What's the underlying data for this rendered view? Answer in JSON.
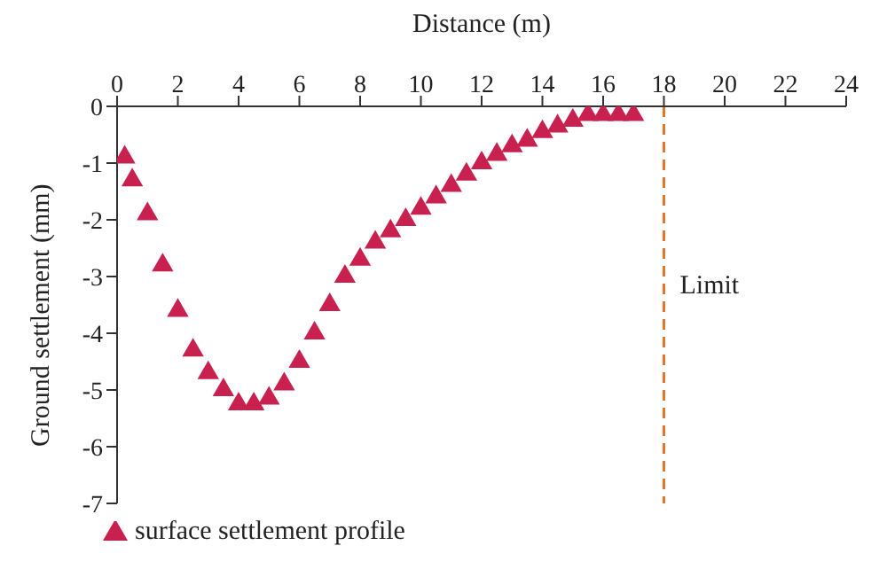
{
  "chart_data": {
    "type": "scatter",
    "xlabel": "Distance (m)",
    "ylabel": "Ground settlement (mm)",
    "x": [
      0.25,
      0.5,
      1,
      1.5,
      2,
      2.5,
      3,
      3.5,
      4,
      4.5,
      5,
      5.5,
      6,
      6.5,
      7,
      7.5,
      8,
      8.5,
      9,
      9.5,
      10,
      10.5,
      11,
      11.5,
      12,
      12.5,
      13,
      13.5,
      14,
      14.5,
      15,
      15.5,
      16,
      16.5,
      17
    ],
    "series": [
      {
        "name": "surface settlement profile",
        "color": "#c8214f",
        "values": [
          -0.9,
          -1.3,
          -1.9,
          -2.8,
          -3.6,
          -4.3,
          -4.7,
          -5.0,
          -5.25,
          -5.25,
          -5.15,
          -4.9,
          -4.5,
          -4.0,
          -3.5,
          -3.0,
          -2.7,
          -2.4,
          -2.2,
          -2.0,
          -1.8,
          -1.6,
          -1.4,
          -1.2,
          -1.0,
          -0.85,
          -0.7,
          -0.6,
          -0.45,
          -0.35,
          -0.25,
          -0.15,
          -0.15,
          -0.15,
          -0.15
        ]
      }
    ],
    "xlim": [
      0,
      24
    ],
    "xticks": [
      0,
      2,
      4,
      6,
      8,
      10,
      12,
      14,
      16,
      18,
      20,
      22,
      24
    ],
    "ylim": [
      -7,
      0
    ],
    "yticks": [
      0,
      -1,
      -2,
      -3,
      -4,
      -5,
      -6,
      -7
    ],
    "ref_lines": [
      {
        "axis": "x",
        "value": 18,
        "label": "Limit",
        "color": "#e8752a",
        "line_style": "dashed"
      }
    ],
    "marker": "triangle",
    "legend": "bottom left",
    "grid": false
  }
}
